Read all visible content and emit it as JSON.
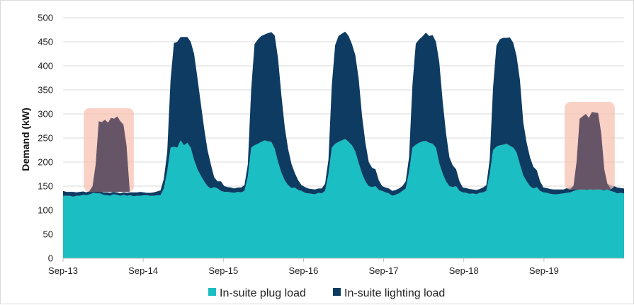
{
  "chart_data": {
    "type": "area",
    "title": "",
    "xlabel": "",
    "ylabel": "Demand (kW)",
    "ylim": [
      0,
      500
    ],
    "yticks": [
      0,
      50,
      100,
      150,
      200,
      250,
      300,
      350,
      400,
      450,
      500
    ],
    "xlim": [
      0,
      7
    ],
    "xticks": [
      {
        "value": 0,
        "label": "Sep-13"
      },
      {
        "value": 1,
        "label": "Sep-14"
      },
      {
        "value": 2,
        "label": "Sep-15"
      },
      {
        "value": 3,
        "label": "Sep-16"
      },
      {
        "value": 4,
        "label": "Sep-17"
      },
      {
        "value": 5,
        "label": "Sep-18"
      },
      {
        "value": 6,
        "label": "Sep-19"
      }
    ],
    "x_unit": "days from Sep-13 (hourly samples)",
    "stacked": true,
    "grid": "horizontal",
    "legend_position": "bottom",
    "series": [
      {
        "name": "In-suite plug load",
        "color": "#1bbec2",
        "values": [
          130,
          130,
          130,
          128,
          130,
          130,
          132,
          131,
          133,
          136,
          135,
          135,
          132,
          131,
          130,
          133,
          132,
          130,
          132,
          130,
          131,
          129,
          130,
          130,
          131,
          131,
          130,
          130,
          131,
          131,
          145,
          180,
          230,
          232,
          230,
          245,
          235,
          240,
          230,
          205,
          185,
          172,
          160,
          150,
          145,
          148,
          145,
          140,
          138,
          138,
          137,
          136,
          138,
          137,
          140,
          170,
          230,
          235,
          238,
          242,
          245,
          243,
          242,
          228,
          200,
          178,
          162,
          152,
          146,
          147,
          142,
          140,
          136,
          135,
          134,
          133,
          136,
          135,
          140,
          175,
          230,
          238,
          242,
          245,
          248,
          242,
          235,
          222,
          198,
          176,
          160,
          150,
          148,
          150,
          142,
          140,
          137,
          135,
          130,
          132,
          135,
          140,
          145,
          180,
          230,
          236,
          240,
          243,
          244,
          240,
          238,
          230,
          197,
          176,
          160,
          150,
          148,
          150,
          140,
          137,
          136,
          134,
          135,
          133,
          136,
          137,
          140,
          175,
          225,
          232,
          235,
          236,
          238,
          234,
          230,
          220,
          195,
          172,
          160,
          150,
          145,
          148,
          140,
          137,
          136,
          134,
          133,
          133,
          134,
          135,
          136,
          137,
          140,
          142,
          143,
          143,
          142,
          144,
          142,
          145,
          143,
          141,
          143,
          140,
          138,
          135,
          136,
          135
        ]
      },
      {
        "name": "In-suite lighting load",
        "color": "#0d3b62",
        "values": [
          10,
          8,
          8,
          10,
          7,
          8,
          7,
          6,
          8,
          6,
          5,
          5,
          5,
          6,
          6,
          5,
          5,
          5,
          5,
          6,
          6,
          8,
          7,
          8,
          6,
          5,
          6,
          7,
          8,
          10,
          20,
          40,
          140,
          215,
          220,
          215,
          225,
          220,
          220,
          220,
          190,
          150,
          110,
          75,
          50,
          20,
          15,
          20,
          12,
          10,
          10,
          9,
          9,
          10,
          12,
          25,
          120,
          210,
          217,
          220,
          220,
          225,
          228,
          235,
          215,
          160,
          110,
          75,
          50,
          30,
          20,
          12,
          12,
          10,
          10,
          10,
          9,
          10,
          15,
          30,
          130,
          205,
          220,
          222,
          223,
          220,
          210,
          200,
          175,
          120,
          80,
          50,
          40,
          35,
          20,
          10,
          10,
          10,
          10,
          10,
          10,
          10,
          15,
          30,
          130,
          210,
          215,
          218,
          225,
          222,
          226,
          220,
          210,
          150,
          100,
          60,
          45,
          35,
          20,
          10,
          10,
          10,
          8,
          9,
          8,
          10,
          12,
          30,
          130,
          210,
          220,
          222,
          220,
          225,
          218,
          200,
          175,
          110,
          80,
          60,
          45,
          35,
          20,
          10,
          10,
          10,
          10,
          10,
          9,
          8,
          10,
          10,
          12,
          12,
          12,
          13,
          14,
          15,
          15,
          15,
          14,
          14,
          12,
          12,
          12,
          12,
          10,
          10
        ]
      }
    ],
    "annotations": [
      {
        "kind": "shaded-region",
        "x_range": [
          0.33,
          0.83
        ],
        "y_range": [
          138,
          312
        ],
        "fill": "#f7c2b2",
        "overlay": {
          "color": "#665567",
          "values": [
            140,
            150,
            195,
            285,
            283,
            288,
            282,
            292,
            290,
            295,
            285,
            278,
            235,
            145
          ]
        }
      },
      {
        "kind": "shaded-region",
        "x_range": [
          6.33,
          6.83
        ],
        "y_range": [
          143,
          325
        ],
        "fill": "#f7c2b2",
        "overlay": {
          "color": "#665567",
          "values": [
            143,
            150,
            200,
            290,
            295,
            300,
            292,
            304,
            303,
            302,
            260,
            185,
            155,
            145
          ]
        }
      }
    ]
  },
  "legend": [
    {
      "label": "In-suite plug load",
      "color": "#1bbec2"
    },
    {
      "label": "In-suite lighting load",
      "color": "#0d3b62"
    }
  ]
}
